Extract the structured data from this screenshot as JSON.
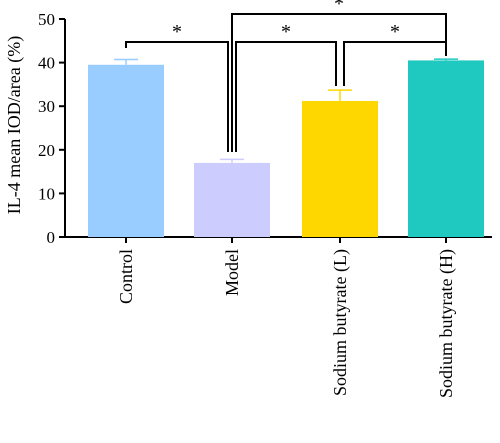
{
  "chart_data": {
    "type": "bar",
    "ylabel": "IL-4 mean IOD/area (%)",
    "ylim": [
      0,
      50
    ],
    "yticks": [
      0,
      10,
      20,
      30,
      40,
      50
    ],
    "categories": [
      "Control",
      "Model",
      "Sodium butyrate (L)",
      "Sodium butyrate (H)"
    ],
    "values": [
      39.5,
      17.0,
      31.2,
      40.5
    ],
    "errors": [
      1.2,
      0.8,
      2.5,
      0.3
    ],
    "colors": [
      "#99ccff",
      "#ccccff",
      "#ffd700",
      "#1fc9bf"
    ],
    "significance": [
      {
        "from": "Control",
        "to": "Model",
        "label": "*"
      },
      {
        "from": "Model",
        "to": "Sodium butyrate (L)",
        "label": "*"
      },
      {
        "from": "Sodium butyrate (L)",
        "to": "Sodium butyrate (H)",
        "label": "*"
      },
      {
        "from": "Model",
        "to": "Sodium butyrate (H)",
        "label": "*"
      }
    ]
  }
}
